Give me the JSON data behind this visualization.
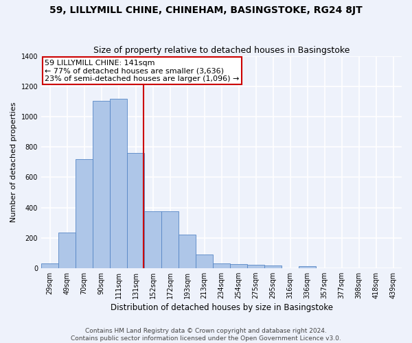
{
  "title1": "59, LILLYMILL CHINE, CHINEHAM, BASINGSTOKE, RG24 8JT",
  "title2": "Size of property relative to detached houses in Basingstoke",
  "xlabel": "Distribution of detached houses by size in Basingstoke",
  "ylabel": "Number of detached properties",
  "footnote1": "Contains HM Land Registry data © Crown copyright and database right 2024.",
  "footnote2": "Contains public sector information licensed under the Open Government Licence v3.0.",
  "annotation_line1": "59 LILLYMILL CHINE: 141sqm",
  "annotation_line2": "← 77% of detached houses are smaller (3,636)",
  "annotation_line3": "23% of semi-detached houses are larger (1,096) →",
  "bar_labels": [
    "29sqm",
    "49sqm",
    "70sqm",
    "90sqm",
    "111sqm",
    "131sqm",
    "152sqm",
    "172sqm",
    "193sqm",
    "213sqm",
    "234sqm",
    "254sqm",
    "275sqm",
    "295sqm",
    "316sqm",
    "336sqm",
    "357sqm",
    "377sqm",
    "398sqm",
    "418sqm",
    "439sqm"
  ],
  "bar_values": [
    30,
    235,
    720,
    1105,
    1120,
    760,
    375,
    375,
    220,
    90,
    30,
    25,
    20,
    15,
    0,
    10,
    0,
    0,
    0,
    0,
    0
  ],
  "bar_color": "#aec6e8",
  "bar_edge_color": "#5585c5",
  "vline_color": "#cc0000",
  "vline_x_index": 5.45,
  "ylim": [
    0,
    1400
  ],
  "yticks": [
    0,
    200,
    400,
    600,
    800,
    1000,
    1200,
    1400
  ],
  "background_color": "#eef2fb",
  "grid_color": "#ffffff",
  "annotation_box_color": "#ffffff",
  "annotation_box_edge_color": "#cc0000",
  "title1_fontsize": 10,
  "title2_fontsize": 9,
  "xlabel_fontsize": 8.5,
  "ylabel_fontsize": 8,
  "tick_fontsize": 7,
  "footnote_fontsize": 6.5,
  "annotation_fontsize": 8
}
